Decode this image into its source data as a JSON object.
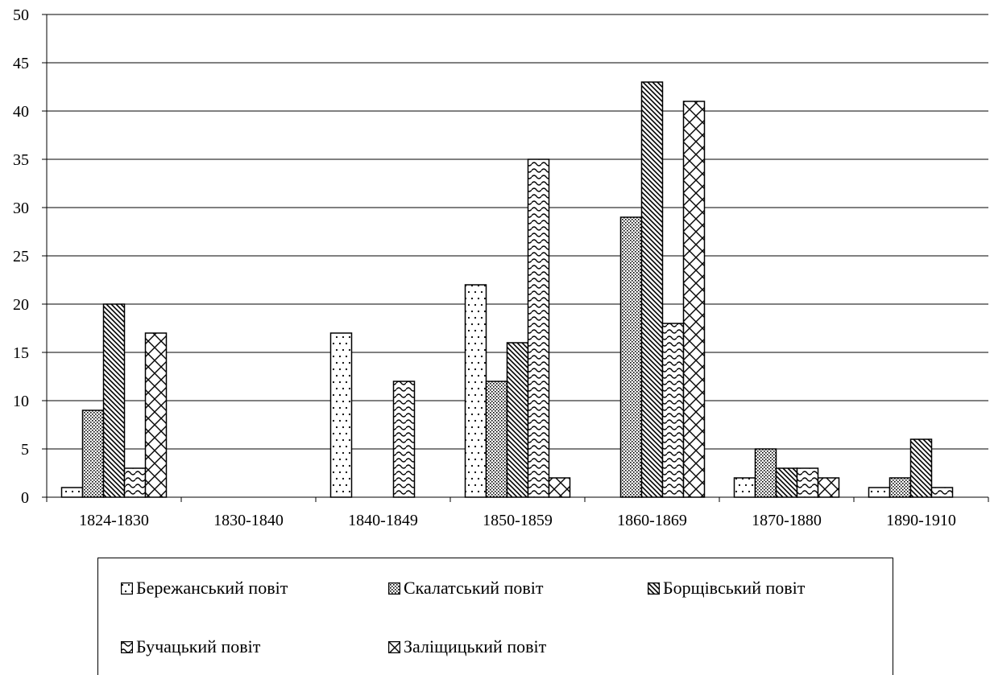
{
  "chart_data": {
    "type": "bar",
    "categories": [
      "1824-1830",
      "1830-1840",
      "1840-1849",
      "1850-1859",
      "1860-1869",
      "1870-1880",
      "1890-1910"
    ],
    "ylim": [
      0,
      50
    ],
    "yticks": [
      "0",
      "5",
      "10",
      "15",
      "20",
      "25",
      "30",
      "35",
      "40",
      "45",
      "50"
    ],
    "grid": true,
    "legend_position": "bottom",
    "series": [
      {
        "name": "Бережанський повіт",
        "pattern": "dots-sparse",
        "values": [
          1,
          0,
          17,
          22,
          0,
          2,
          1
        ]
      },
      {
        "name": "Скалатський повіт",
        "pattern": "dots-dense",
        "values": [
          9,
          0,
          0,
          12,
          29,
          5,
          2
        ]
      },
      {
        "name": "Борщівський повіт",
        "pattern": "diagonal-lines",
        "values": [
          20,
          0,
          0,
          16,
          43,
          3,
          6
        ]
      },
      {
        "name": "Бучацький повіт",
        "pattern": "waves",
        "values": [
          3,
          0,
          12,
          35,
          18,
          3,
          1
        ]
      },
      {
        "name": "Заліщицький повіт",
        "pattern": "zigzag",
        "values": [
          17,
          0,
          0,
          2,
          41,
          2,
          0
        ]
      }
    ]
  }
}
